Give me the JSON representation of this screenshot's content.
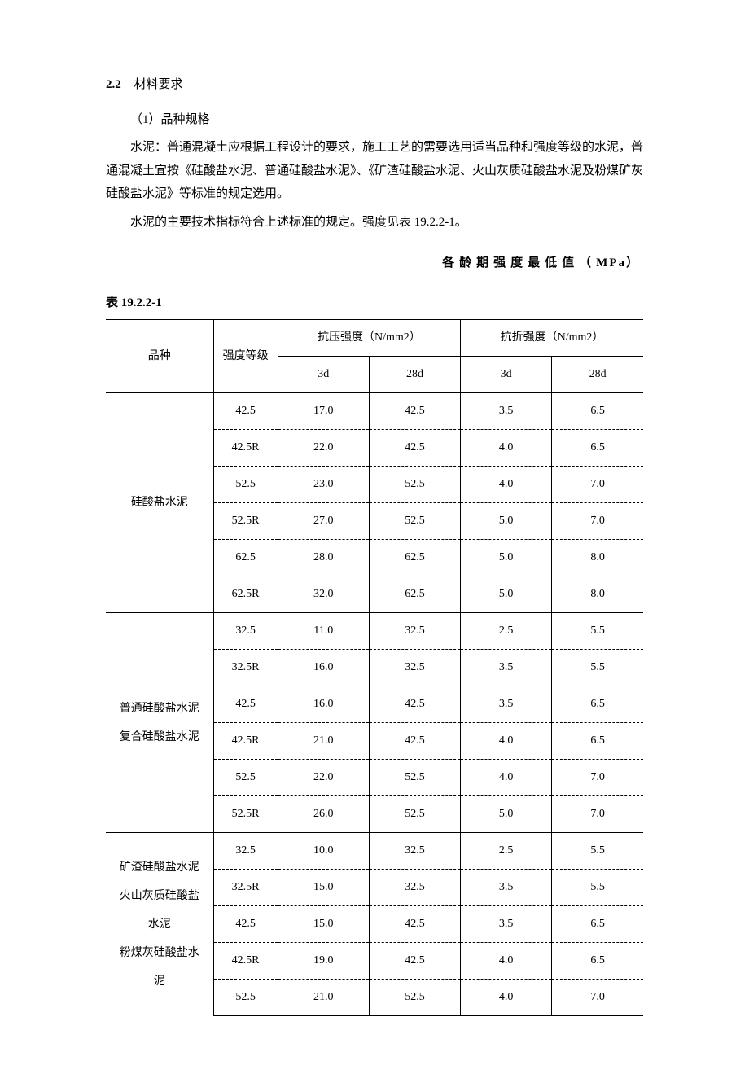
{
  "section": {
    "number": "2.2",
    "title": "材料要求"
  },
  "paragraphs": {
    "p1": "（1）品种规格",
    "p2": "水泥：普通混凝土应根据工程设计的要求，施工工艺的需要选用适当品种和强度等级的水泥，普通混凝土宜按《硅酸盐水泥、普通硅酸盐水泥》、《矿渣硅酸盐水泥、火山灰质硅酸盐水泥及粉煤矿灰硅酸盐水泥》等标准的规定选用。",
    "p3": "水泥的主要技术指标符合上述标准的规定。强度见表 19.2.2-1。"
  },
  "tableCaption": {
    "text": "各龄期强度最低值（",
    "unit": "MPa",
    "close": "）"
  },
  "tableNumber": {
    "prefix": "表",
    "num": "19.2.2-1"
  },
  "table": {
    "headers": {
      "variety": "品种",
      "grade": "强度等级",
      "compressive": "抗压强度（N/mm2）",
      "flexural": "抗折强度（N/mm2）",
      "d3": "3d",
      "d28": "28d"
    },
    "groups": [
      {
        "varietyLines": [
          "硅酸盐水泥"
        ],
        "rows": [
          {
            "grade": "42.5",
            "c3": "17.0",
            "c28": "42.5",
            "f3": "3.5",
            "f28": "6.5"
          },
          {
            "grade": "42.5R",
            "c3": "22.0",
            "c28": "42.5",
            "f3": "4.0",
            "f28": "6.5"
          },
          {
            "grade": "52.5",
            "c3": "23.0",
            "c28": "52.5",
            "f3": "4.0",
            "f28": "7.0"
          },
          {
            "grade": "52.5R",
            "c3": "27.0",
            "c28": "52.5",
            "f3": "5.0",
            "f28": "7.0"
          },
          {
            "grade": "62.5",
            "c3": "28.0",
            "c28": "62.5",
            "f3": "5.0",
            "f28": "8.0"
          },
          {
            "grade": "62.5R",
            "c3": "32.0",
            "c28": "62.5",
            "f3": "5.0",
            "f28": "8.0"
          }
        ]
      },
      {
        "varietyLines": [
          "普通硅酸盐水泥",
          "复合硅酸盐水泥"
        ],
        "rows": [
          {
            "grade": "32.5",
            "c3": "11.0",
            "c28": "32.5",
            "f3": "2.5",
            "f28": "5.5"
          },
          {
            "grade": "32.5R",
            "c3": "16.0",
            "c28": "32.5",
            "f3": "3.5",
            "f28": "5.5"
          },
          {
            "grade": "42.5",
            "c3": "16.0",
            "c28": "42.5",
            "f3": "3.5",
            "f28": "6.5"
          },
          {
            "grade": "42.5R",
            "c3": "21.0",
            "c28": "42.5",
            "f3": "4.0",
            "f28": "6.5"
          },
          {
            "grade": "52.5",
            "c3": "22.0",
            "c28": "52.5",
            "f3": "4.0",
            "f28": "7.0"
          },
          {
            "grade": "52.5R",
            "c3": "26.0",
            "c28": "52.5",
            "f3": "5.0",
            "f28": "7.0"
          }
        ]
      },
      {
        "varietyLines": [
          "矿渣硅酸盐水泥",
          "火山灰质硅酸盐",
          "水泥",
          "粉煤灰硅酸盐水",
          "泥"
        ],
        "rows": [
          {
            "grade": "32.5",
            "c3": "10.0",
            "c28": "32.5",
            "f3": "2.5",
            "f28": "5.5"
          },
          {
            "grade": "32.5R",
            "c3": "15.0",
            "c28": "32.5",
            "f3": "3.5",
            "f28": "5.5"
          },
          {
            "grade": "42.5",
            "c3": "15.0",
            "c28": "42.5",
            "f3": "3.5",
            "f28": "6.5"
          },
          {
            "grade": "42.5R",
            "c3": "19.0",
            "c28": "42.5",
            "f3": "4.0",
            "f28": "6.5"
          },
          {
            "grade": "52.5",
            "c3": "21.0",
            "c28": "52.5",
            "f3": "4.0",
            "f28": "7.0"
          }
        ]
      }
    ]
  }
}
